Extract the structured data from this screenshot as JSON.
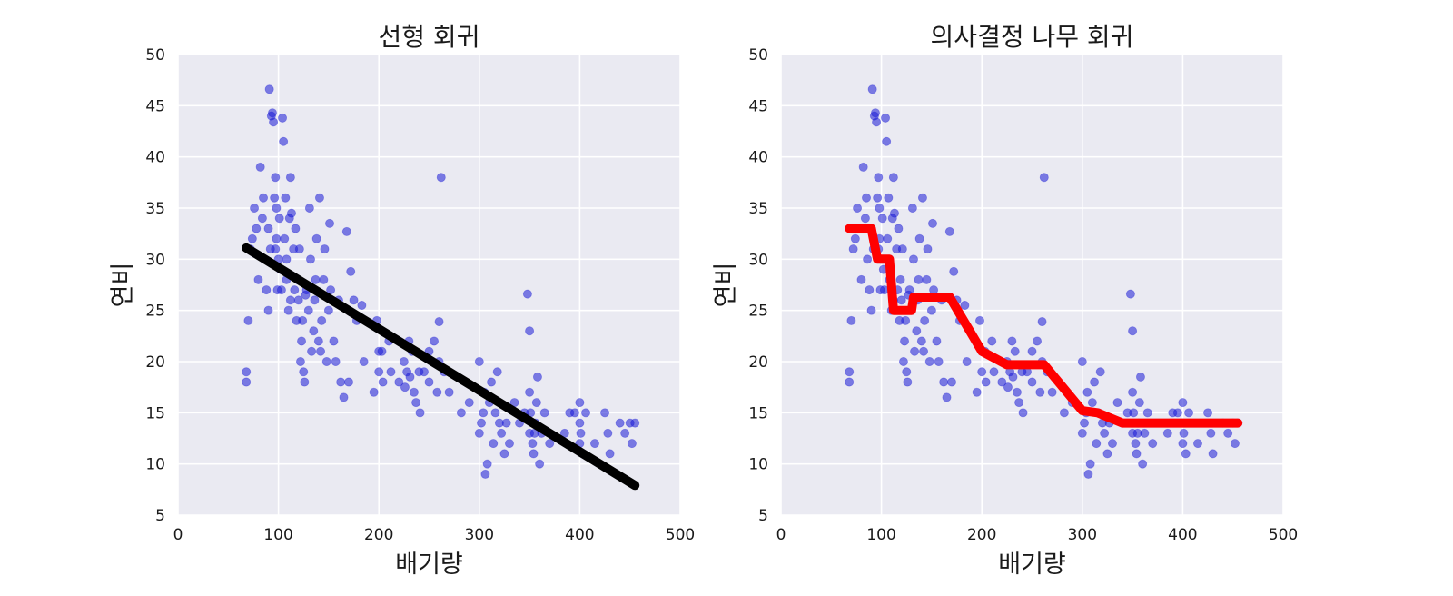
{
  "colors": {
    "plot_background": "#eaeaf2",
    "grid": "#ffffff",
    "points": "#1a1ad6",
    "linear_fit": "#000000",
    "tree_fit": "#ff0000"
  },
  "chart_data": [
    {
      "type": "scatter",
      "title": "선형 회귀",
      "xlabel": "배기량",
      "ylabel": "연비",
      "xlim": [
        0,
        500
      ],
      "ylim": [
        5,
        50
      ],
      "xticks": [
        "0",
        "100",
        "200",
        "300",
        "400",
        "500"
      ],
      "yticks": [
        "5",
        "10",
        "15",
        "20",
        "25",
        "30",
        "35",
        "40",
        "45",
        "50"
      ],
      "grid": true,
      "points": [
        [
          68,
          18
        ],
        [
          68,
          19
        ],
        [
          70,
          24
        ],
        [
          72,
          31
        ],
        [
          74,
          32
        ],
        [
          76,
          35
        ],
        [
          78,
          33
        ],
        [
          80,
          28
        ],
        [
          82,
          39
        ],
        [
          84,
          34
        ],
        [
          85,
          36
        ],
        [
          86,
          30
        ],
        [
          88,
          27
        ],
        [
          90,
          33
        ],
        [
          90,
          25
        ],
        [
          91,
          46.6
        ],
        [
          92,
          31
        ],
        [
          93,
          44
        ],
        [
          94,
          44.3
        ],
        [
          95,
          43.4
        ],
        [
          96,
          36
        ],
        [
          97,
          38
        ],
        [
          97,
          31
        ],
        [
          98,
          32
        ],
        [
          98,
          35
        ],
        [
          99,
          27
        ],
        [
          100,
          30
        ],
        [
          101,
          34
        ],
        [
          102,
          29
        ],
        [
          103,
          27
        ],
        [
          104,
          43.8
        ],
        [
          105,
          41.5
        ],
        [
          106,
          32
        ],
        [
          107,
          36
        ],
        [
          108,
          28
        ],
        [
          108,
          30
        ],
        [
          110,
          25
        ],
        [
          111,
          34
        ],
        [
          112,
          26
        ],
        [
          112,
          38
        ],
        [
          113,
          34.5
        ],
        [
          115,
          31
        ],
        [
          116,
          27
        ],
        [
          117,
          33
        ],
        [
          118,
          24
        ],
        [
          119,
          28
        ],
        [
          120,
          26
        ],
        [
          121,
          31
        ],
        [
          122,
          20
        ],
        [
          123,
          22
        ],
        [
          124,
          24
        ],
        [
          125,
          19
        ],
        [
          126,
          18
        ],
        [
          127,
          26.5
        ],
        [
          128,
          27
        ],
        [
          130,
          25
        ],
        [
          131,
          35
        ],
        [
          132,
          30
        ],
        [
          133,
          21
        ],
        [
          135,
          23
        ],
        [
          136,
          26
        ],
        [
          137,
          28
        ],
        [
          138,
          32
        ],
        [
          140,
          22
        ],
        [
          141,
          36
        ],
        [
          142,
          21
        ],
        [
          143,
          24
        ],
        [
          145,
          28
        ],
        [
          146,
          31
        ],
        [
          148,
          20
        ],
        [
          150,
          25
        ],
        [
          151,
          33.5
        ],
        [
          152,
          27
        ],
        [
          155,
          22
        ],
        [
          157,
          20
        ],
        [
          160,
          26
        ],
        [
          162,
          18
        ],
        [
          165,
          16.5
        ],
        [
          168,
          32.7
        ],
        [
          170,
          18
        ],
        [
          172,
          28.8
        ],
        [
          175,
          26
        ],
        [
          178,
          24
        ],
        [
          183,
          25.5
        ],
        [
          185,
          20
        ],
        [
          195,
          17
        ],
        [
          198,
          24
        ],
        [
          200,
          19
        ],
        [
          200,
          21
        ],
        [
          203,
          21
        ],
        [
          204,
          18
        ],
        [
          210,
          22
        ],
        [
          212,
          19
        ],
        [
          220,
          18
        ],
        [
          225,
          20
        ],
        [
          226,
          17.5
        ],
        [
          228,
          19
        ],
        [
          230,
          22
        ],
        [
          231,
          18.5
        ],
        [
          233,
          21
        ],
        [
          235,
          17
        ],
        [
          237,
          16
        ],
        [
          240,
          19
        ],
        [
          241,
          15
        ],
        [
          245,
          19
        ],
        [
          250,
          18
        ],
        [
          250,
          21
        ],
        [
          255,
          22
        ],
        [
          258,
          17
        ],
        [
          260,
          23.9
        ],
        [
          260,
          20
        ],
        [
          262,
          38
        ],
        [
          265,
          19
        ],
        [
          270,
          17
        ],
        [
          282,
          15
        ],
        [
          290,
          16
        ],
        [
          300,
          20
        ],
        [
          300,
          13
        ],
        [
          302,
          14
        ],
        [
          304,
          15
        ],
        [
          305,
          17
        ],
        [
          306,
          9
        ],
        [
          308,
          10
        ],
        [
          310,
          16
        ],
        [
          312,
          18
        ],
        [
          314,
          12
        ],
        [
          316,
          15
        ],
        [
          318,
          19
        ],
        [
          320,
          14
        ],
        [
          322,
          13
        ],
        [
          325,
          11
        ],
        [
          327,
          14
        ],
        [
          330,
          12
        ],
        [
          335,
          16
        ],
        [
          340,
          14
        ],
        [
          345,
          15
        ],
        [
          348,
          26.6
        ],
        [
          350,
          23
        ],
        [
          350,
          17
        ],
        [
          350,
          13
        ],
        [
          351,
          15
        ],
        [
          353,
          12
        ],
        [
          354,
          11
        ],
        [
          355,
          13
        ],
        [
          356,
          14
        ],
        [
          357,
          16
        ],
        [
          358,
          18.5
        ],
        [
          360,
          10
        ],
        [
          362,
          13
        ],
        [
          365,
          15
        ],
        [
          370,
          12
        ],
        [
          385,
          13
        ],
        [
          390,
          15
        ],
        [
          395,
          15
        ],
        [
          400,
          16
        ],
        [
          400,
          14
        ],
        [
          400,
          12
        ],
        [
          401,
          13
        ],
        [
          403,
          11
        ],
        [
          406,
          15
        ],
        [
          415,
          12
        ],
        [
          425,
          15
        ],
        [
          428,
          13
        ],
        [
          430,
          11
        ],
        [
          440,
          14
        ],
        [
          445,
          13
        ],
        [
          450,
          14
        ],
        [
          452,
          12
        ],
        [
          455,
          14
        ]
      ],
      "fit_line": [
        [
          68,
          31.1
        ],
        [
          455,
          7.9
        ]
      ]
    },
    {
      "type": "scatter",
      "title": "의사결정 나무 회귀",
      "xlabel": "배기량",
      "ylabel": "연비",
      "xlim": [
        0,
        500
      ],
      "ylim": [
        5,
        50
      ],
      "xticks": [
        "0",
        "100",
        "200",
        "300",
        "400",
        "500"
      ],
      "yticks": [
        "5",
        "10",
        "15",
        "20",
        "25",
        "30",
        "35",
        "40",
        "45",
        "50"
      ],
      "grid": true,
      "points": "same",
      "fit_line": [
        [
          68,
          33
        ],
        [
          90,
          33
        ],
        [
          96,
          30
        ],
        [
          108,
          30
        ],
        [
          112,
          25
        ],
        [
          130,
          25
        ],
        [
          132,
          26.3
        ],
        [
          168,
          26.3
        ],
        [
          200,
          21
        ],
        [
          225,
          19.7
        ],
        [
          262,
          19.7
        ],
        [
          300,
          15.2
        ],
        [
          315,
          15
        ],
        [
          340,
          14
        ],
        [
          455,
          14
        ]
      ]
    }
  ]
}
